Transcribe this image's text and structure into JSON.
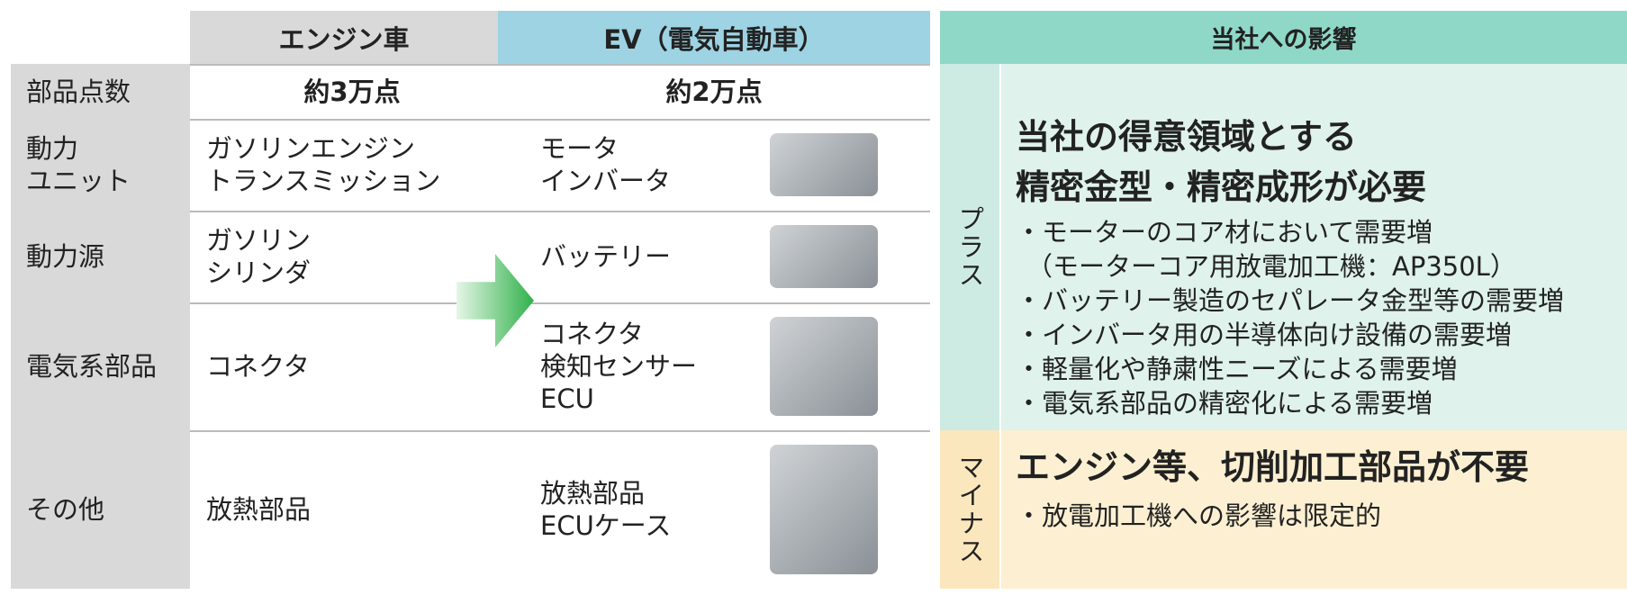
{
  "table": {
    "headers": [
      "エンジン車",
      "EV（電気自動車）"
    ],
    "rows": [
      {
        "label": [
          "部品点数"
        ],
        "engine": [
          "約3万点"
        ],
        "ev": [
          "約2万点"
        ]
      },
      {
        "label": [
          "動力",
          "ユニット"
        ],
        "engine": [
          "ガソリンエンジン",
          "トランスミッション"
        ],
        "ev": [
          "モータ",
          "インバータ"
        ]
      },
      {
        "label": [
          "動力源"
        ],
        "engine": [
          "ガソリン",
          "シリンダ"
        ],
        "ev": [
          "バッテリー"
        ]
      },
      {
        "label": [
          "電気系部品"
        ],
        "engine": [
          "コネクタ"
        ],
        "ev": [
          "コネクタ",
          "検知センサー",
          "ECU"
        ]
      },
      {
        "label": [
          "その他"
        ],
        "engine": [
          "放熱部品"
        ],
        "ev": [
          "放熱部品",
          "ECUケース"
        ]
      }
    ]
  },
  "impact": {
    "title": "当社への影響",
    "plus": {
      "label": "プラス",
      "headline": [
        "当社の得意領域とする",
        "精密金型・精密成形が必要"
      ],
      "bullets": [
        "・モーターのコア材において需要増",
        "（モーターコア用放電加工機：AP350L）",
        "・バッテリー製造のセパレータ金型等の需要増",
        "・インバータ用の半導体向け設備の需要増",
        "・軽量化や静粛性ニーズによる需要増",
        "・電気系部品の精密化による需要増"
      ]
    },
    "minus": {
      "label": "マイナス",
      "headline": [
        "エンジン等、切削加工部品が不要"
      ],
      "bullets": [
        "・放電加工機への影響は限定的"
      ]
    }
  }
}
